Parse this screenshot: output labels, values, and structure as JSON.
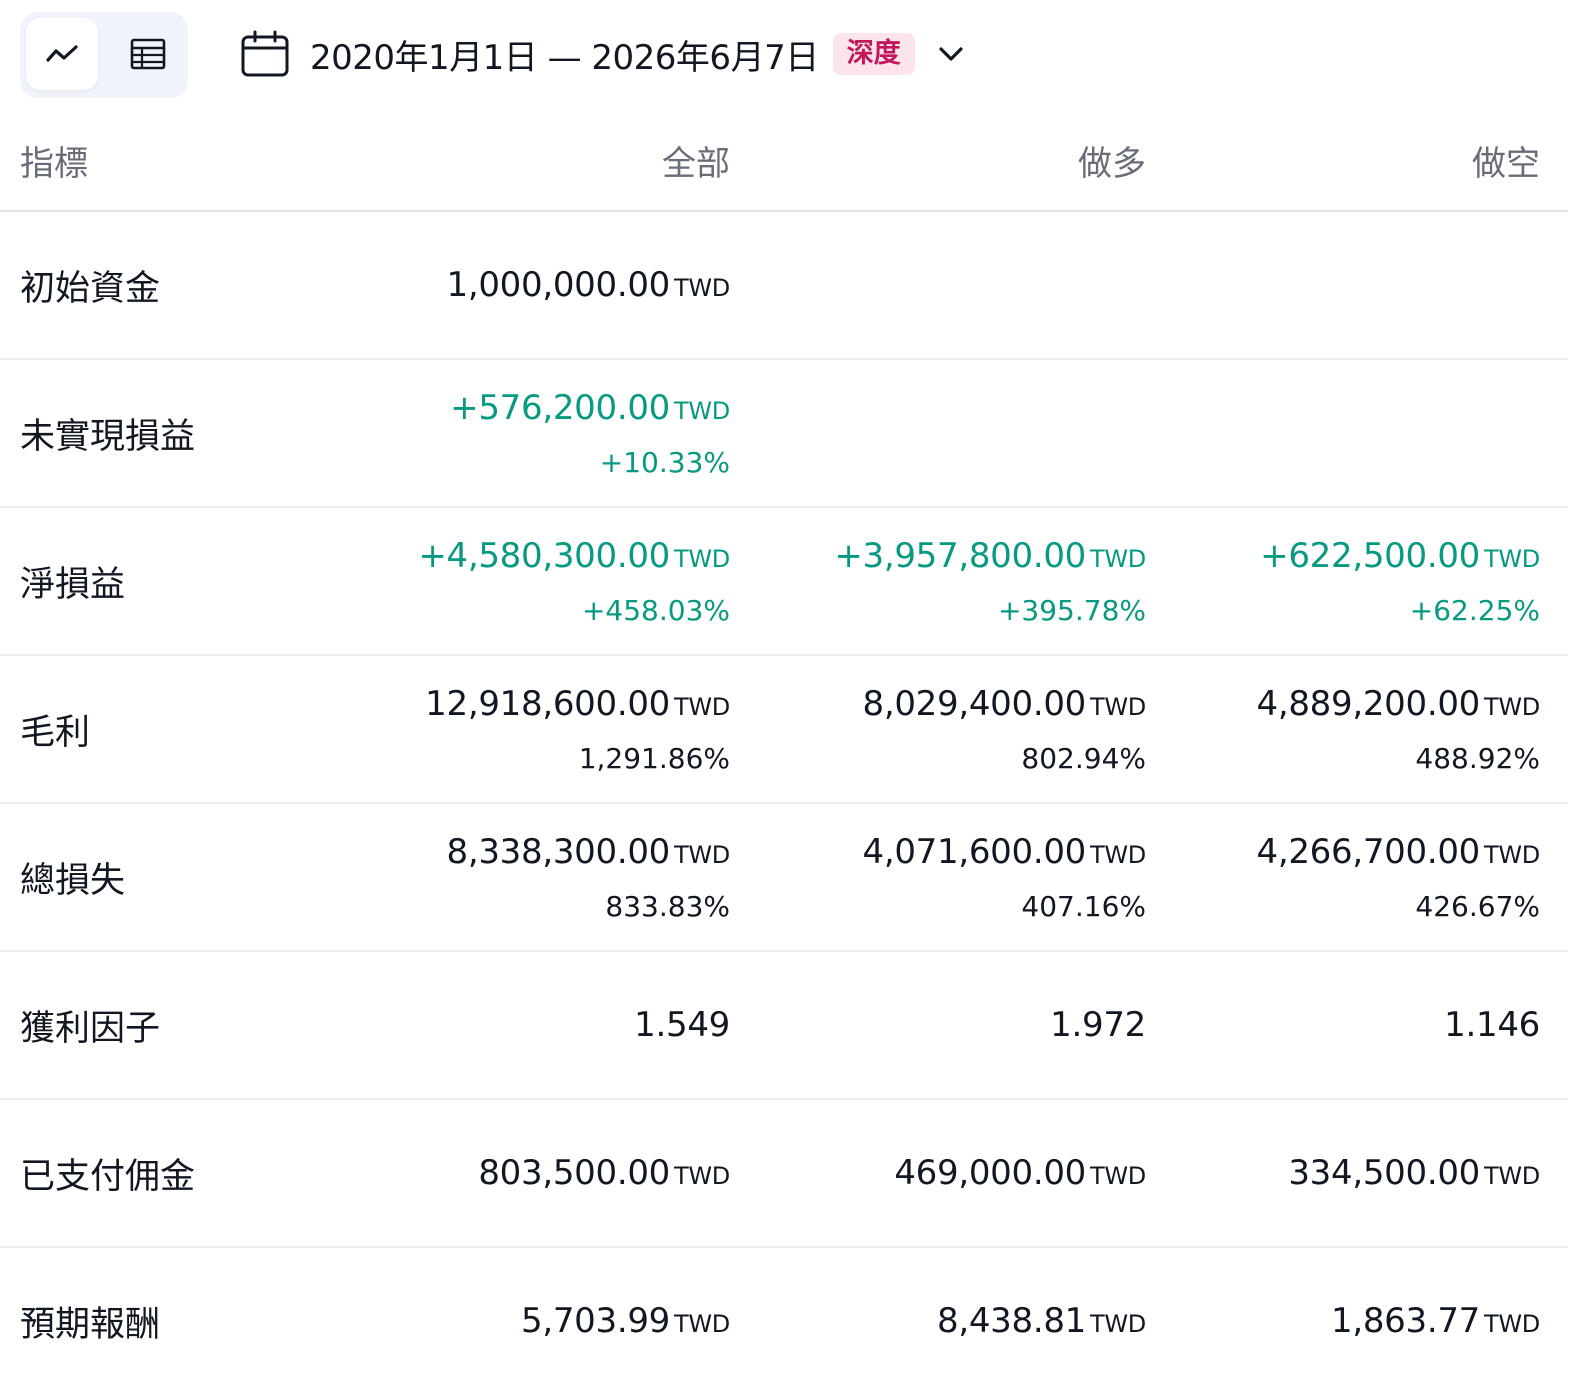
{
  "toolbar": {
    "date_range": "2020年1月1日 — 2026年6月7日",
    "badge": "深度"
  },
  "table": {
    "headers": [
      "指標",
      "全部",
      "做多",
      "做空"
    ],
    "rows": [
      {
        "metric": "初始資金",
        "all": {
          "value": "1,000,000.00",
          "currency": "TWD",
          "pct": "",
          "tone": "neutral"
        },
        "long": {
          "value": "",
          "currency": "",
          "pct": "",
          "tone": "neutral"
        },
        "short": {
          "value": "",
          "currency": "",
          "pct": "",
          "tone": "neutral"
        }
      },
      {
        "metric": "未實現損益",
        "all": {
          "value": "+576,200.00",
          "currency": "TWD",
          "pct": "+10.33%",
          "tone": "positive"
        },
        "long": {
          "value": "",
          "currency": "",
          "pct": "",
          "tone": "neutral"
        },
        "short": {
          "value": "",
          "currency": "",
          "pct": "",
          "tone": "neutral"
        }
      },
      {
        "metric": "淨損益",
        "all": {
          "value": "+4,580,300.00",
          "currency": "TWD",
          "pct": "+458.03%",
          "tone": "positive"
        },
        "long": {
          "value": "+3,957,800.00",
          "currency": "TWD",
          "pct": "+395.78%",
          "tone": "positive"
        },
        "short": {
          "value": "+622,500.00",
          "currency": "TWD",
          "pct": "+62.25%",
          "tone": "positive"
        }
      },
      {
        "metric": "毛利",
        "all": {
          "value": "12,918,600.00",
          "currency": "TWD",
          "pct": "1,291.86%",
          "tone": "neutral"
        },
        "long": {
          "value": "8,029,400.00",
          "currency": "TWD",
          "pct": "802.94%",
          "tone": "neutral"
        },
        "short": {
          "value": "4,889,200.00",
          "currency": "TWD",
          "pct": "488.92%",
          "tone": "neutral"
        }
      },
      {
        "metric": "總損失",
        "all": {
          "value": "8,338,300.00",
          "currency": "TWD",
          "pct": "833.83%",
          "tone": "neutral"
        },
        "long": {
          "value": "4,071,600.00",
          "currency": "TWD",
          "pct": "407.16%",
          "tone": "neutral"
        },
        "short": {
          "value": "4,266,700.00",
          "currency": "TWD",
          "pct": "426.67%",
          "tone": "neutral"
        }
      },
      {
        "metric": "獲利因子",
        "all": {
          "value": "1.549",
          "currency": "",
          "pct": "",
          "tone": "neutral"
        },
        "long": {
          "value": "1.972",
          "currency": "",
          "pct": "",
          "tone": "neutral"
        },
        "short": {
          "value": "1.146",
          "currency": "",
          "pct": "",
          "tone": "neutral"
        }
      },
      {
        "metric": "已支付佣金",
        "all": {
          "value": "803,500.00",
          "currency": "TWD",
          "pct": "",
          "tone": "neutral"
        },
        "long": {
          "value": "469,000.00",
          "currency": "TWD",
          "pct": "",
          "tone": "neutral"
        },
        "short": {
          "value": "334,500.00",
          "currency": "TWD",
          "pct": "",
          "tone": "neutral"
        }
      },
      {
        "metric": "預期報酬",
        "all": {
          "value": "5,703.99",
          "currency": "TWD",
          "pct": "",
          "tone": "neutral"
        },
        "long": {
          "value": "8,438.81",
          "currency": "TWD",
          "pct": "",
          "tone": "neutral"
        },
        "short": {
          "value": "1,863.77",
          "currency": "TWD",
          "pct": "",
          "tone": "neutral"
        }
      }
    ]
  },
  "colors": {
    "positive": "#089981",
    "text": "#131722",
    "muted": "#6a6d78",
    "badge_bg": "#fce4ec",
    "badge_text": "#c2185b"
  },
  "icons": {
    "chart_view": "chart-line-icon",
    "table_view": "table-icon",
    "calendar": "calendar-icon",
    "dropdown": "chevron-down-icon"
  }
}
